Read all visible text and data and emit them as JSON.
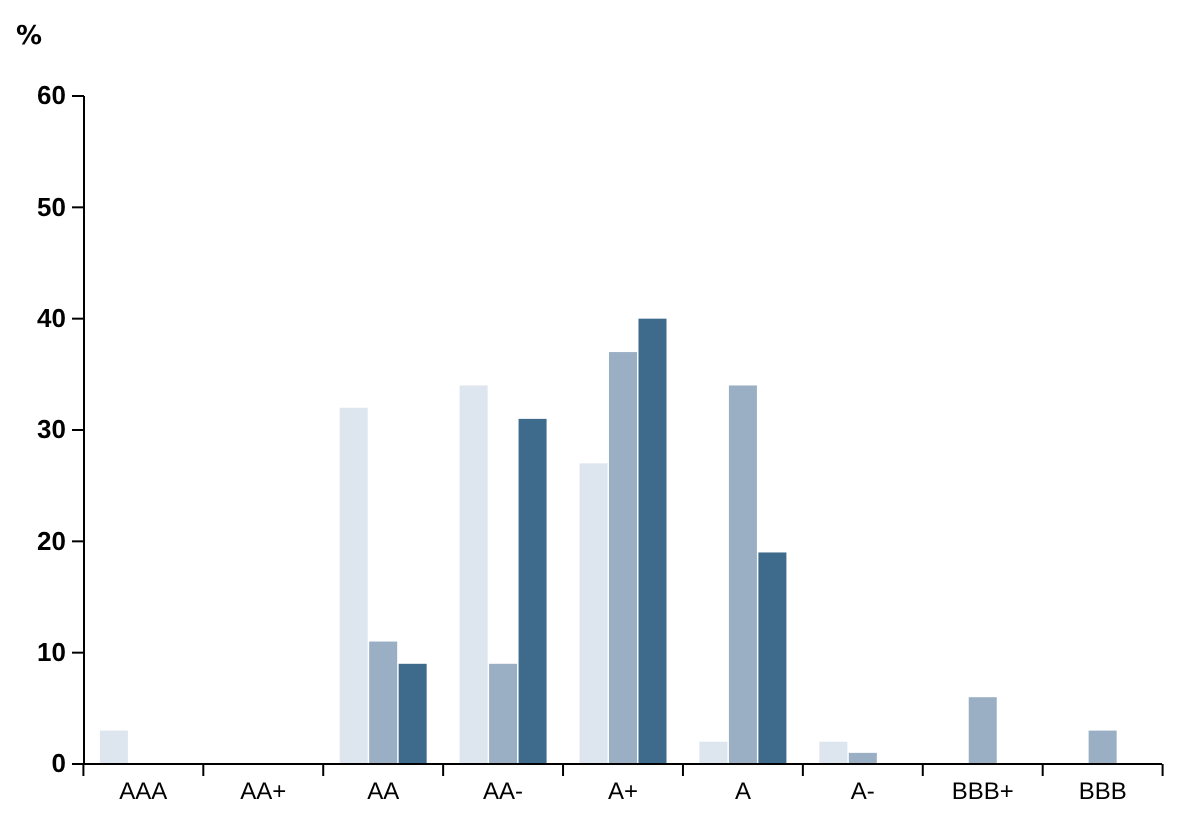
{
  "chart_data": {
    "type": "bar",
    "ylabel": "%",
    "categories": [
      "AAA",
      "AA+",
      "AA",
      "AA-",
      "A+",
      "A",
      "A-",
      "BBB+",
      "BBB"
    ],
    "series": [
      {
        "color": "#dde5ee",
        "values": [
          3,
          0,
          32,
          34,
          27,
          2,
          2,
          0,
          0
        ]
      },
      {
        "color": "#9aafc4",
        "values": [
          0,
          0,
          11,
          9,
          37,
          34,
          1,
          6,
          3
        ]
      },
      {
        "color": "#3e6a8c",
        "values": [
          0,
          0,
          9,
          31,
          40,
          19,
          0,
          0,
          0
        ]
      }
    ],
    "ylim": [
      0,
      60
    ],
    "yticks": [
      0,
      10,
      20,
      30,
      40,
      50,
      60
    ],
    "grid": false
  }
}
